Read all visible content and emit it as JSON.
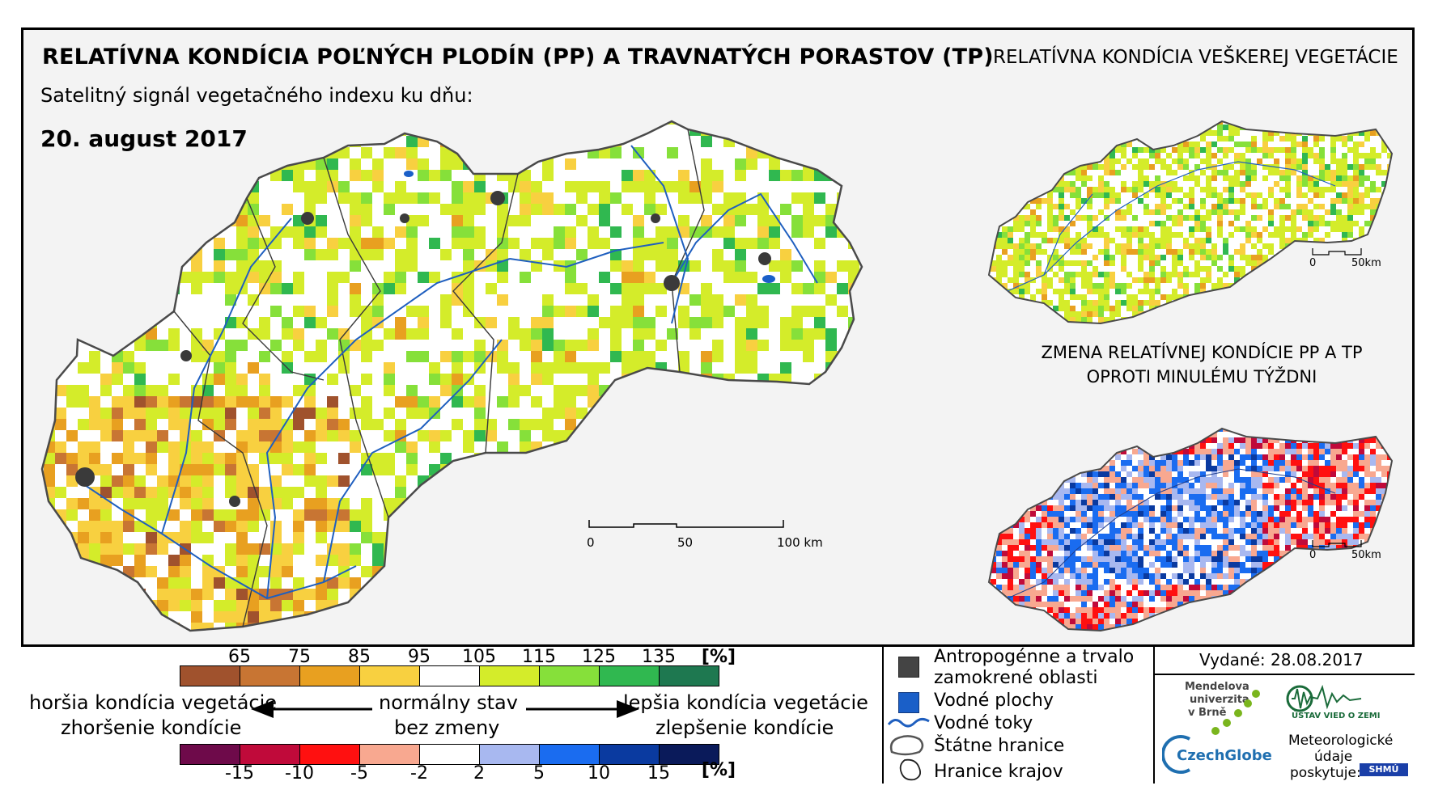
{
  "titles": {
    "main": "RELATÍVNA KONDÍCIA POĽNÝCH PLODÍN (PP) A TRAVNATÝCH PORASTOV (TP)",
    "subtitle": "Satelitný signál vegetačného indexu ku dňu:",
    "date": "20. august 2017",
    "right_map": "RELATÍVNA KONDÍCIA VEŠKEREJ VEGETÁCIE",
    "change_map_line1": "ZMENA RELATÍVNEJ KONDÍCIE PP A TP",
    "change_map_line2": "OPROTI MINULÉMU TÝŽDNI"
  },
  "scales": {
    "main": [
      "0",
      "50",
      "100 km"
    ],
    "small": [
      "0",
      "50km"
    ]
  },
  "legend": {
    "condition_ticks": [
      "65",
      "75",
      "85",
      "95",
      "105",
      "115",
      "125",
      "135"
    ],
    "condition_unit": "[%]",
    "condition_colors": [
      "#a0522d",
      "#c87533",
      "#e8a020",
      "#f8d040",
      "#ffffff",
      "#d4ec2a",
      "#86e03a",
      "#30b850",
      "#1e7850"
    ],
    "change_ticks": [
      "-15",
      "-10",
      "-5",
      "-2",
      "2",
      "5",
      "10",
      "15"
    ],
    "change_unit": "[%]",
    "change_colors": [
      "#6e0a4a",
      "#c00a3a",
      "#ff1010",
      "#f8a890",
      "#ffffff",
      "#a8b8f0",
      "#1a6cf0",
      "#0a3aa0",
      "#0a1a5a"
    ],
    "worse_line1": "horšia kondícia vegetácie",
    "worse_line2": "zhoršenie kondície",
    "normal_line1": "normálny stav",
    "normal_line2": "bez zmeny",
    "better_line1": "lepšia kondícia vegetácie",
    "better_line2": "zlepšenie kondície"
  },
  "symbols": {
    "anthropogenic_line1": "Antropogénne a trvalo",
    "anthropogenic_line2": "zamokrené oblasti",
    "water_bodies": "Vodné plochy",
    "water_streams": "Vodné toky",
    "state_border": "Štátne hranice",
    "region_border": "Hranice krajov"
  },
  "issued": "Vydané: 28.08.2017",
  "logos": {
    "mendel_line1": "Mendelova",
    "mendel_line2": "univerzita",
    "mendel_line3": "v Brně",
    "czechglobe": "CzechGlobe",
    "uvgz": "ÚSTAV VIED O ZEMI",
    "meteo_line1": "Meteorologické",
    "meteo_line2": "údaje",
    "meteo_line3": "poskytuje:",
    "shmu": "SHMÚ"
  },
  "colors": {
    "anthropogenic": "#444444",
    "water_body": "#1a5fc8",
    "river": "#1f5fbf",
    "border": "#555555"
  }
}
